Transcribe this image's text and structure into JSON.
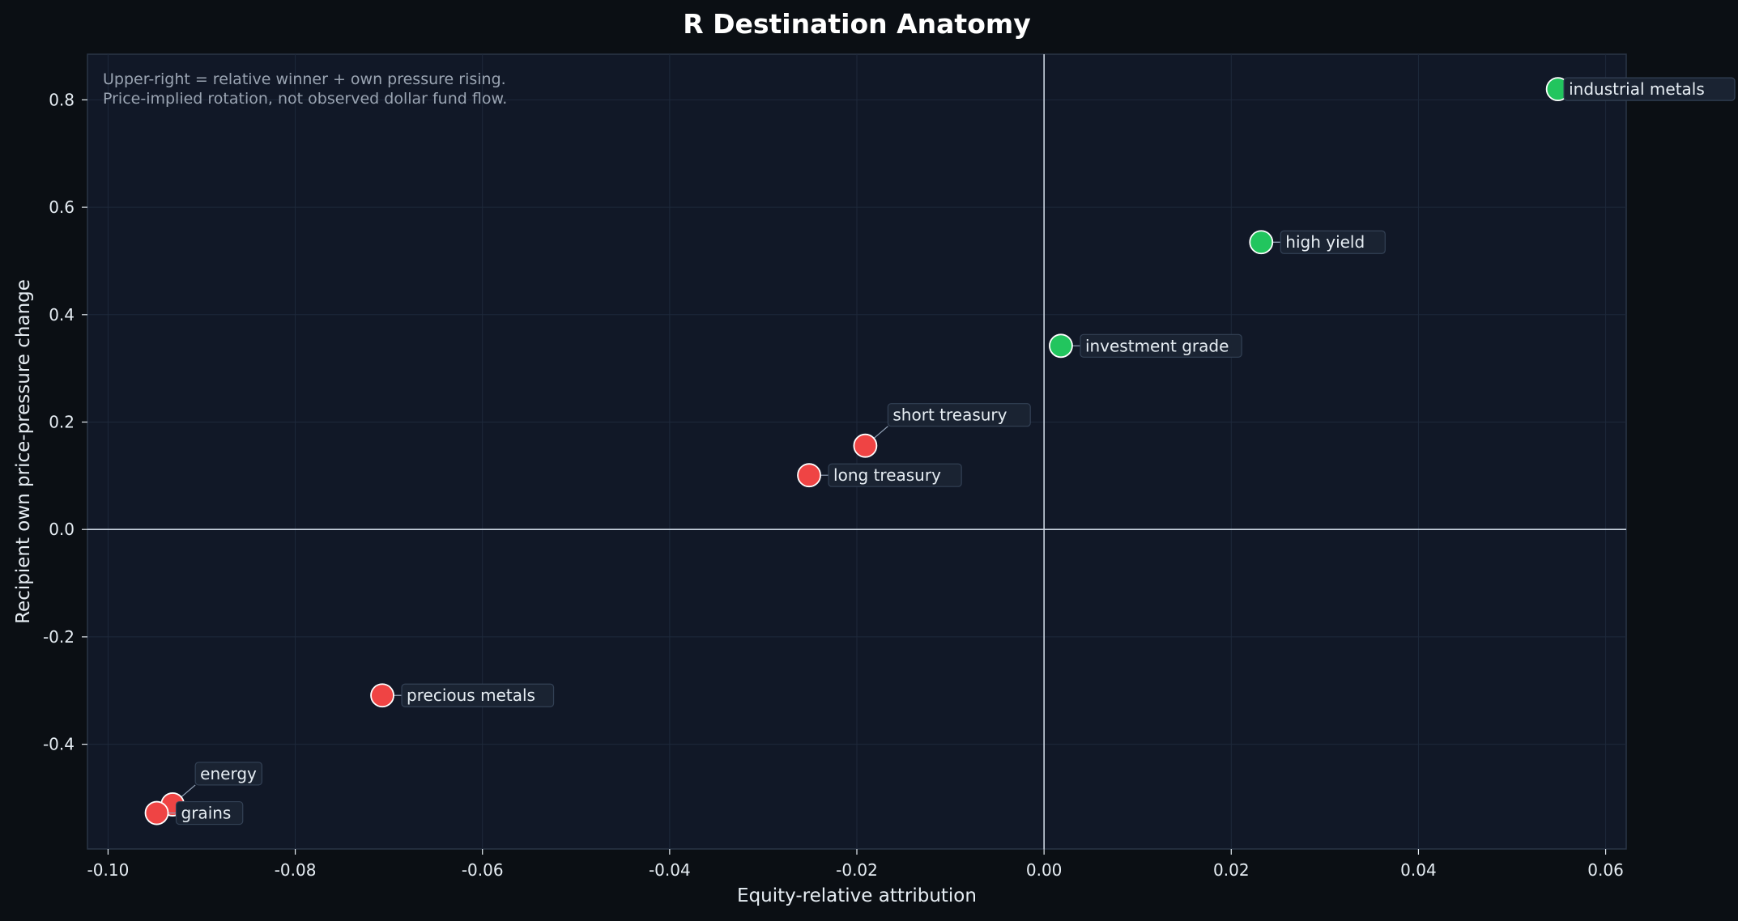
{
  "chart_data": {
    "type": "scatter",
    "title": "R Destination Anatomy",
    "xlabel": "Equity-relative attribution",
    "ylabel": "Recipient own price-pressure change",
    "xlim": [
      -0.1022,
      0.0622
    ],
    "ylim": [
      -0.595,
      0.885
    ],
    "xticks": [
      -0.1,
      -0.08,
      -0.06,
      -0.04,
      -0.02,
      0.0,
      0.02,
      0.04,
      0.06
    ],
    "xtick_labels": [
      "-0.10",
      "-0.08",
      "-0.06",
      "-0.04",
      "-0.02",
      "0.00",
      "0.02",
      "0.04",
      "0.06"
    ],
    "yticks": [
      -0.4,
      -0.2,
      0.0,
      0.2,
      0.4,
      0.6,
      0.8
    ],
    "ytick_labels": [
      "-0.4",
      "-0.2",
      "0.0",
      "0.2",
      "0.4",
      "0.6",
      "0.8"
    ],
    "grid": true,
    "reference_lines": {
      "x": 0.0,
      "y": 0.0
    },
    "annotation": [
      "Upper-right = relative winner + own pressure rising.",
      "Price-implied rotation, not observed dollar fund flow."
    ],
    "points": [
      {
        "label": "industrial metals",
        "x": 0.0549,
        "y": 0.82,
        "color": "#22c55e",
        "label_side": "right"
      },
      {
        "label": "high yield",
        "x": 0.0232,
        "y": 0.535,
        "color": "#22c55e",
        "label_side": "right"
      },
      {
        "label": "investment grade",
        "x": 0.0018,
        "y": 0.342,
        "color": "#22c55e",
        "label_side": "right"
      },
      {
        "label": "short treasury",
        "x": -0.0191,
        "y": 0.156,
        "color": "#ef4444",
        "label_side": "upper-right"
      },
      {
        "label": "long treasury",
        "x": -0.0251,
        "y": 0.101,
        "color": "#ef4444",
        "label_side": "right"
      },
      {
        "label": "precious metals",
        "x": -0.0707,
        "y": -0.309,
        "color": "#ef4444",
        "label_side": "right"
      },
      {
        "label": "energy",
        "x": -0.0931,
        "y": -0.512,
        "color": "#ef4444",
        "label_side": "upper-right"
      },
      {
        "label": "grains",
        "x": -0.0948,
        "y": -0.528,
        "color": "#ef4444",
        "label_side": "right"
      }
    ]
  },
  "colors": {
    "page_background": "#0b0f14",
    "plot_background": "#111827",
    "positive": "#22c55e",
    "negative": "#ef4444",
    "grid": "#1e293b",
    "reference_line": "#cbd5e1",
    "text": "#e6edf3",
    "muted_text": "#9aa4b2"
  }
}
